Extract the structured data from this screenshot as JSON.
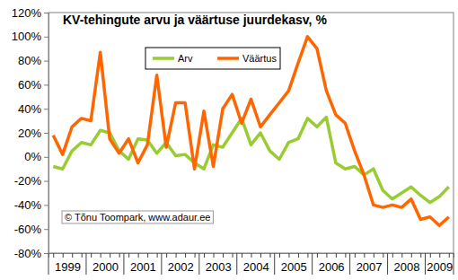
{
  "chart_data": {
    "type": "line",
    "title": "KV-tehingute arvu ja väärtuse juurdekasv, %",
    "annotations": [
      "© Tõnu Toompark, www.adaur.ee"
    ],
    "categories": [
      "1999",
      null,
      null,
      null,
      "2000",
      null,
      null,
      null,
      "2001",
      null,
      null,
      null,
      "2002",
      null,
      null,
      null,
      "2003",
      null,
      null,
      null,
      "2004",
      null,
      null,
      null,
      "2005",
      null,
      null,
      null,
      "2006",
      null,
      null,
      null,
      "2007",
      null,
      null,
      null,
      "2008",
      null,
      null,
      null,
      "2009",
      null,
      null
    ],
    "series": [
      {
        "name": "Arv",
        "color": "#99cc33",
        "values": [
          -8,
          -10,
          5,
          12,
          10,
          22,
          20,
          5,
          -2,
          15,
          14,
          3,
          12,
          1,
          2,
          -5,
          -10,
          10,
          8,
          20,
          32,
          10,
          20,
          5,
          -2,
          12,
          15,
          32,
          25,
          33,
          -5,
          -10,
          -8,
          -15,
          -10,
          -28,
          -35,
          -30,
          -25,
          -32,
          -38,
          -33,
          -25
        ]
      },
      {
        "name": "Väärtus",
        "color": "#ff6600",
        "values": [
          18,
          2,
          25,
          32,
          30,
          87,
          15,
          3,
          15,
          -5,
          10,
          68,
          8,
          45,
          45,
          -10,
          38,
          -8,
          40,
          52,
          28,
          48,
          25,
          35,
          45,
          55,
          78,
          100,
          90,
          55,
          35,
          28,
          5,
          -15,
          -40,
          -42,
          -40,
          -42,
          -35,
          -52,
          -50,
          -57,
          -50
        ]
      }
    ],
    "ylim": [
      -80,
      120
    ],
    "yticks": [
      {
        "value": -80,
        "label": "-80%"
      },
      {
        "value": -60,
        "label": "-60%"
      },
      {
        "value": -40,
        "label": "-40%"
      },
      {
        "value": -20,
        "label": "-20%"
      },
      {
        "value": 0,
        "label": "0%"
      },
      {
        "value": 20,
        "label": "20%"
      },
      {
        "value": 40,
        "label": "40%"
      },
      {
        "value": 60,
        "label": "60%"
      },
      {
        "value": 80,
        "label": "80%"
      },
      {
        "value": 100,
        "label": "100%"
      },
      {
        "value": 120,
        "label": "120%"
      }
    ],
    "grid": false,
    "legend": "top"
  }
}
